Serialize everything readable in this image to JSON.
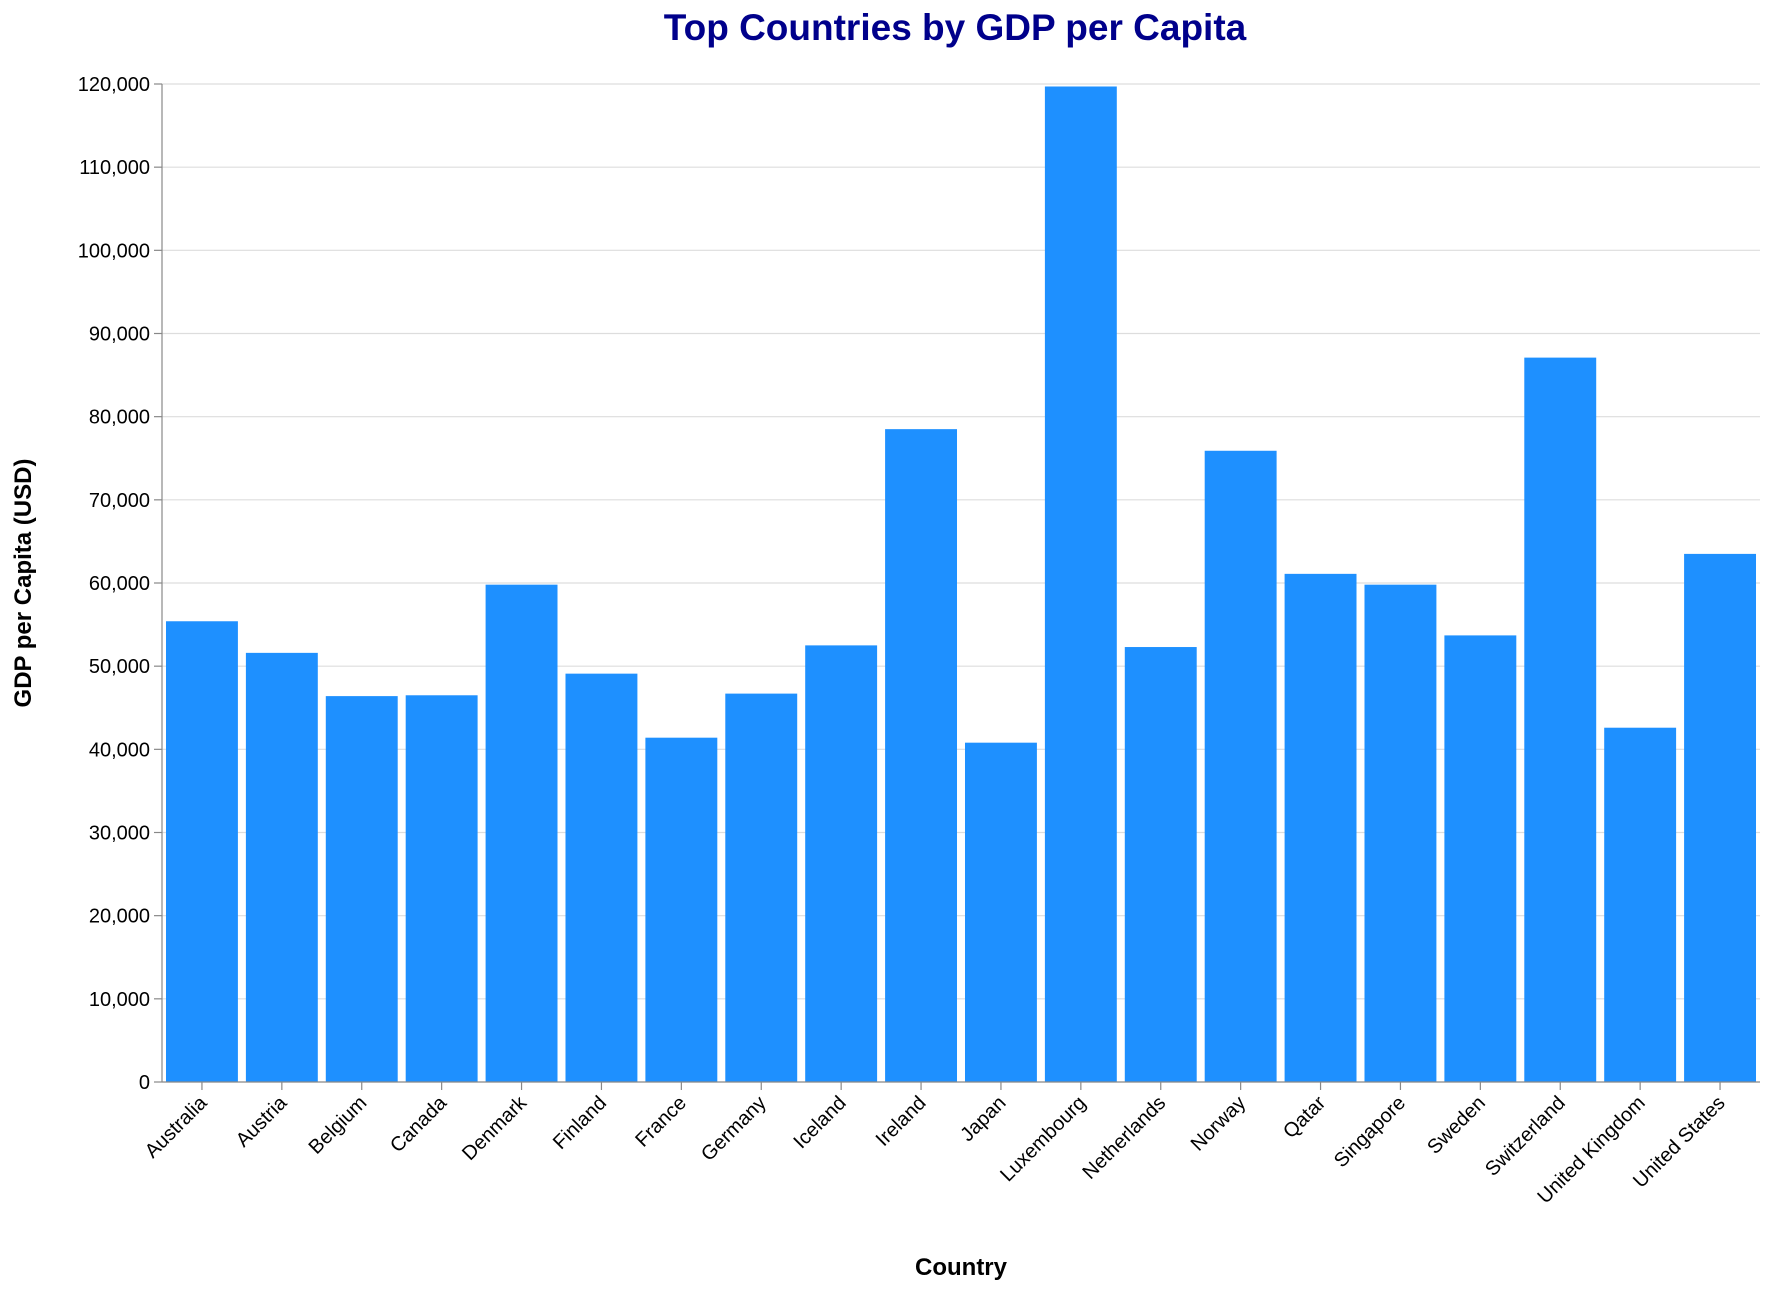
{
  "chart_data": {
    "type": "bar",
    "title": "Top Countries by GDP per Capita",
    "xlabel": "Country",
    "ylabel": "GDP per Capita (USD)",
    "ylim": [
      0,
      120000
    ],
    "yticks": [
      0,
      10000,
      20000,
      30000,
      40000,
      50000,
      60000,
      70000,
      80000,
      90000,
      100000,
      110000,
      120000
    ],
    "ytick_labels": [
      "0",
      "10,000",
      "20,000",
      "30,000",
      "40,000",
      "50,000",
      "60,000",
      "70,000",
      "80,000",
      "90,000",
      "100,000",
      "110,000",
      "120,000"
    ],
    "grid": true,
    "categories": [
      "Australia",
      "Austria",
      "Belgium",
      "Canada",
      "Denmark",
      "Finland",
      "France",
      "Germany",
      "Iceland",
      "Ireland",
      "Japan",
      "Luxembourg",
      "Netherlands",
      "Norway",
      "Qatar",
      "Singapore",
      "Sweden",
      "Switzerland",
      "United Kingdom",
      "United States"
    ],
    "values": [
      55400,
      51600,
      46400,
      46500,
      59800,
      49100,
      41400,
      46700,
      52500,
      78500,
      40800,
      119700,
      52300,
      75900,
      61100,
      59800,
      53700,
      87100,
      42600,
      63500
    ],
    "colors": {
      "bar": "#1e90ff",
      "title": "#00008b"
    }
  }
}
